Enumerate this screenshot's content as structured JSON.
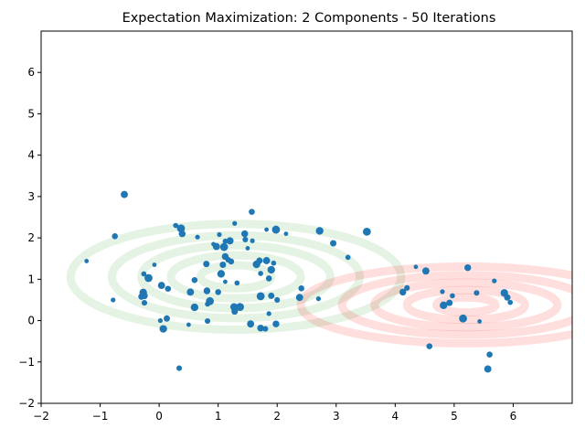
{
  "chart_data": {
    "type": "scatter",
    "title": "Expectation Maximization: 2 Components - 50 Iterations",
    "xlabel": "",
    "ylabel": "",
    "xlim": [
      -2,
      7
    ],
    "ylim": [
      -2,
      7
    ],
    "xticks": [
      -2,
      -1,
      0,
      1,
      2,
      3,
      4,
      5,
      6
    ],
    "yticks": [
      -2,
      -1,
      0,
      1,
      2,
      3,
      4,
      5,
      6
    ],
    "grid": false,
    "point_color": "#1f77b4",
    "points": [
      {
        "x": -1.23,
        "y": 1.44
      },
      {
        "x": -0.59,
        "y": 3.05
      },
      {
        "x": -0.75,
        "y": 2.04
      },
      {
        "x": -0.78,
        "y": 0.5
      },
      {
        "x": -0.27,
        "y": 0.68
      },
      {
        "x": -0.3,
        "y": 0.58
      },
      {
        "x": -0.26,
        "y": 1.13
      },
      {
        "x": -0.18,
        "y": 1.03
      },
      {
        "x": -0.25,
        "y": 0.6
      },
      {
        "x": -0.25,
        "y": 0.43
      },
      {
        "x": -0.08,
        "y": 1.35
      },
      {
        "x": 0.04,
        "y": 0.85
      },
      {
        "x": 0.15,
        "y": 0.77
      },
      {
        "x": 0.02,
        "y": 0.0
      },
      {
        "x": 0.07,
        "y": -0.2
      },
      {
        "x": 0.13,
        "y": 0.05
      },
      {
        "x": 0.28,
        "y": 2.3
      },
      {
        "x": 0.37,
        "y": 2.23
      },
      {
        "x": 0.39,
        "y": 2.1
      },
      {
        "x": 0.34,
        "y": -1.15
      },
      {
        "x": 0.5,
        "y": -0.1
      },
      {
        "x": 0.53,
        "y": 0.69
      },
      {
        "x": 0.6,
        "y": 0.98
      },
      {
        "x": 0.65,
        "y": 2.02
      },
      {
        "x": 0.6,
        "y": 0.32
      },
      {
        "x": 0.8,
        "y": 1.37
      },
      {
        "x": 0.82,
        "y": 0.4
      },
      {
        "x": 0.86,
        "y": 0.47
      },
      {
        "x": 0.81,
        "y": 0.72
      },
      {
        "x": 0.82,
        "y": -0.01
      },
      {
        "x": 0.92,
        "y": 1.85
      },
      {
        "x": 0.97,
        "y": 1.79
      },
      {
        "x": 1.0,
        "y": 0.69
      },
      {
        "x": 1.02,
        "y": 2.08
      },
      {
        "x": 1.05,
        "y": 1.13
      },
      {
        "x": 1.08,
        "y": 1.35
      },
      {
        "x": 1.12,
        "y": 1.92
      },
      {
        "x": 1.1,
        "y": 1.78
      },
      {
        "x": 1.12,
        "y": 1.55
      },
      {
        "x": 1.17,
        "y": 1.47
      },
      {
        "x": 1.12,
        "y": 0.94
      },
      {
        "x": 1.2,
        "y": 1.93
      },
      {
        "x": 1.22,
        "y": 1.43
      },
      {
        "x": 1.28,
        "y": 2.35
      },
      {
        "x": 1.27,
        "y": 0.33
      },
      {
        "x": 1.28,
        "y": 0.22
      },
      {
        "x": 1.32,
        "y": 0.91
      },
      {
        "x": 1.37,
        "y": 0.33
      },
      {
        "x": 1.45,
        "y": 2.1
      },
      {
        "x": 1.46,
        "y": 1.96
      },
      {
        "x": 1.5,
        "y": 1.75
      },
      {
        "x": 1.55,
        "y": -0.08
      },
      {
        "x": 1.57,
        "y": 2.63
      },
      {
        "x": 1.58,
        "y": 1.93
      },
      {
        "x": 1.65,
        "y": 1.36
      },
      {
        "x": 1.7,
        "y": 1.45
      },
      {
        "x": 1.72,
        "y": 1.14
      },
      {
        "x": 1.72,
        "y": 0.59
      },
      {
        "x": 1.72,
        "y": -0.18
      },
      {
        "x": 1.8,
        "y": -0.2
      },
      {
        "x": 1.82,
        "y": 2.2
      },
      {
        "x": 1.82,
        "y": 1.45
      },
      {
        "x": 1.86,
        "y": 1.02
      },
      {
        "x": 1.86,
        "y": 0.17
      },
      {
        "x": 1.9,
        "y": 1.23
      },
      {
        "x": 1.9,
        "y": 0.6
      },
      {
        "x": 1.94,
        "y": 1.39
      },
      {
        "x": 1.98,
        "y": 2.2
      },
      {
        "x": 1.98,
        "y": -0.08
      },
      {
        "x": 2.0,
        "y": 0.5
      },
      {
        "x": 2.15,
        "y": 2.1
      },
      {
        "x": 2.38,
        "y": 0.56
      },
      {
        "x": 2.41,
        "y": 0.78
      },
      {
        "x": 2.7,
        "y": 0.53
      },
      {
        "x": 2.72,
        "y": 2.17
      },
      {
        "x": 2.95,
        "y": 1.87
      },
      {
        "x": 3.2,
        "y": 1.53
      },
      {
        "x": 3.52,
        "y": 2.15
      },
      {
        "x": 4.13,
        "y": 0.69
      },
      {
        "x": 4.2,
        "y": 0.79
      },
      {
        "x": 4.35,
        "y": 1.3
      },
      {
        "x": 4.52,
        "y": 1.2
      },
      {
        "x": 4.58,
        "y": -0.62
      },
      {
        "x": 4.8,
        "y": 0.7
      },
      {
        "x": 4.82,
        "y": 0.37
      },
      {
        "x": 4.92,
        "y": 0.43
      },
      {
        "x": 4.97,
        "y": 0.6
      },
      {
        "x": 5.15,
        "y": 0.05
      },
      {
        "x": 5.23,
        "y": 1.28
      },
      {
        "x": 5.38,
        "y": 0.67
      },
      {
        "x": 5.43,
        "y": -0.02
      },
      {
        "x": 5.57,
        "y": -1.17
      },
      {
        "x": 5.6,
        "y": -0.82
      },
      {
        "x": 5.68,
        "y": 0.96
      },
      {
        "x": 5.85,
        "y": 0.67
      },
      {
        "x": 5.9,
        "y": 0.56
      },
      {
        "x": 5.95,
        "y": 0.44
      }
    ],
    "components": [
      {
        "color": "#2ca02c",
        "center": [
          1.3,
          1.06
        ],
        "rx": [
          0.6,
          1.1,
          1.6,
          2.1,
          2.8
        ],
        "ry": [
          0.28,
          0.52,
          0.76,
          1.0,
          1.28
        ]
      },
      {
        "color": "#ff0000",
        "center": [
          5.2,
          0.38
        ],
        "rx": [
          0.5,
          1.0,
          1.55,
          2.1,
          2.8
        ],
        "ry": [
          0.18,
          0.36,
          0.54,
          0.72,
          0.93
        ]
      }
    ]
  }
}
